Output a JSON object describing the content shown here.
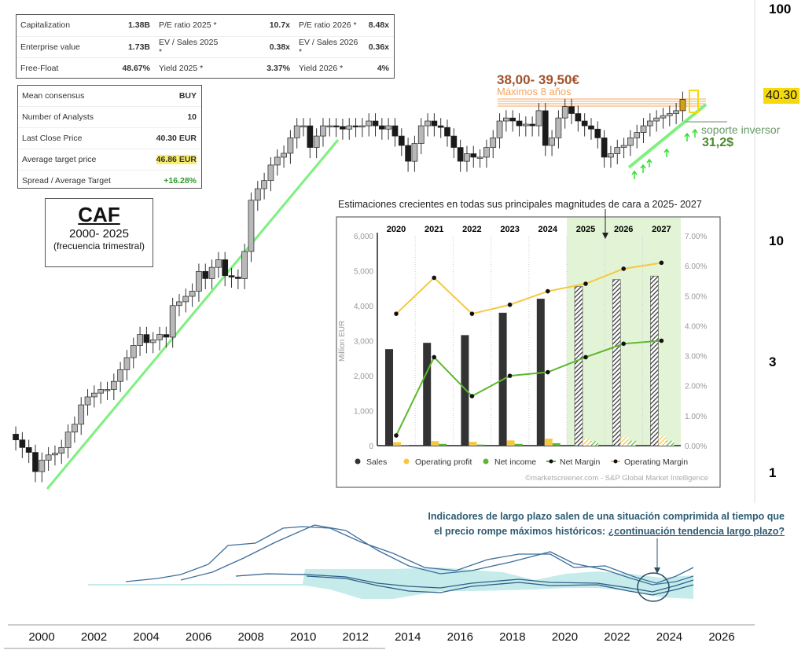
{
  "stats_table": [
    {
      "l1": "Capitalization",
      "v1": "1.38B",
      "l2": "P/E ratio 2025 *",
      "v2": "10.7x",
      "l3": "P/E ratio 2026 *",
      "v3": "8.48x"
    },
    {
      "l1": "Enterprise value",
      "v1": "1.73B",
      "l2": "EV / Sales 2025 *",
      "v2": "0.38x",
      "l3": "EV / Sales 2026 *",
      "v3": "0.36x"
    },
    {
      "l1": "Free-Float",
      "v1": "48.67%",
      "l2": "Yield 2025 *",
      "v2": "3.37%",
      "l3": "Yield 2026 *",
      "v3": "4%"
    }
  ],
  "consensus_table": [
    {
      "label": "Mean consensus",
      "value": "BUY"
    },
    {
      "label": "Number of Analysts",
      "value": "10"
    },
    {
      "label": "Last Close Price",
      "value": "40.30 EUR"
    },
    {
      "label": "Average target price",
      "value": "46.86 EUR"
    },
    {
      "label": "Spread / Average Target",
      "value": "+16.28%"
    }
  ],
  "title_box": {
    "ticker": "CAF",
    "range": "2000- 2025",
    "freq": "(frecuencia trimestral)"
  },
  "annotations": {
    "resistance_value": "38,00- 39,50€",
    "resistance_label": "Máximos 8 años",
    "support_label": "soporte inversor",
    "support_value": "31,2$",
    "last_price": "40.30",
    "indicator_note_1": "Indicadores de largo plazo salen de una situación comprimida al tiempo que",
    "indicator_note_2a": "el precio rompe máximos históricos: ",
    "indicator_note_2b": "¿continuación tendencia largo plazo?"
  },
  "colors": {
    "up": "#b8b8b8",
    "down": "#1a1a1a",
    "trend": "#7ef07e",
    "resistance": "#f4a460",
    "accent": "#f5d90a"
  },
  "chart_data": [
    {
      "type": "candlestick",
      "title": "CAF 2000- 2025 (frecuencia trimestral)",
      "yscale": "log",
      "start_year": 1999,
      "step": "quarter",
      "y_ticks": [
        "100",
        "10",
        "3",
        "1"
      ],
      "y_tick_values": [
        100,
        10,
        3,
        1
      ],
      "x_ticks": [
        "2000",
        "2002",
        "2004",
        "2006",
        "2008",
        "2010",
        "2012",
        "2014",
        "2016",
        "2018",
        "2020",
        "2022",
        "2024",
        "2026"
      ],
      "closes": [
        1.45,
        1.37,
        1.27,
        1.21,
        1.0,
        1.12,
        1.18,
        1.2,
        1.27,
        1.48,
        1.6,
        1.94,
        2.1,
        2.18,
        2.26,
        2.26,
        2.45,
        2.75,
        3.1,
        3.5,
        3.9,
        3.6,
        3.7,
        3.9,
        3.8,
        5.2,
        5.4,
        5.7,
        6.0,
        7.3,
        6.8,
        7.6,
        8.2,
        7.0,
        6.9,
        6.8,
        8.9,
        14.8,
        16.6,
        18,
        21,
        22.7,
        23.6,
        27.5,
        31,
        31,
        25,
        28,
        31,
        31,
        30.8,
        30,
        31,
        30.8,
        31,
        32.5,
        31,
        30,
        31,
        28,
        25.5,
        21.8,
        26,
        31,
        32.5,
        31,
        30.5,
        28,
        25,
        21.8,
        23.5,
        22.7,
        22.7,
        25,
        27.5,
        32.5,
        33.5,
        32.5,
        31,
        31.5,
        31,
        36,
        25.5,
        27.5,
        33.5,
        37.5,
        35,
        32.5,
        31,
        30,
        27.5,
        22.7,
        23.5,
        25,
        25.5,
        27.5,
        29,
        31,
        32.5,
        33.5,
        34.3,
        35,
        36,
        40.3
      ]
    },
    {
      "type": "bar+line",
      "title": "Estimaciones crecientes en todas sus principales magnitudes de cara a 2025- 2027",
      "categories": [
        "2020",
        "2021",
        "2022",
        "2023",
        "2024",
        "2025",
        "2026",
        "2027"
      ],
      "estimated_from": "2025",
      "ylabel": "Million EUR",
      "ylim": [
        0,
        6000
      ],
      "y_ticks": [
        "0",
        "1,000",
        "2,000",
        "3,000",
        "4,000",
        "5,000",
        "6,000"
      ],
      "y2lim": [
        0,
        7
      ],
      "y2_ticks": [
        "0.00%",
        "1.00%",
        "2.00%",
        "3.00%",
        "4.00%",
        "5.00%",
        "6.00%",
        "7.00%"
      ],
      "series": [
        {
          "name": "Sales",
          "values": [
            2760,
            2940,
            3160,
            3800,
            4200,
            4550,
            4750,
            4850
          ],
          "color": "#333333"
        },
        {
          "name": "Operating profit",
          "values": [
            100,
            130,
            110,
            150,
            200,
            200,
            250,
            270
          ],
          "color": "#f5c842"
        },
        {
          "name": "Net income",
          "values": [
            10,
            50,
            30,
            50,
            70,
            130,
            140,
            140
          ],
          "color": "#5cb82e"
        },
        {
          "name": "Net Margin",
          "values": [
            0.34,
            2.95,
            1.65,
            2.33,
            2.45,
            2.95,
            3.4,
            3.5
          ],
          "color": "#5cb82e"
        },
        {
          "name": "Operating Margin",
          "values": [
            4.4,
            5.6,
            4.4,
            4.7,
            5.15,
            5.4,
            5.9,
            6.1
          ],
          "color": "#f5c842"
        }
      ],
      "source": "©marketscreener.com - S&P Global Market Intelligence"
    }
  ]
}
